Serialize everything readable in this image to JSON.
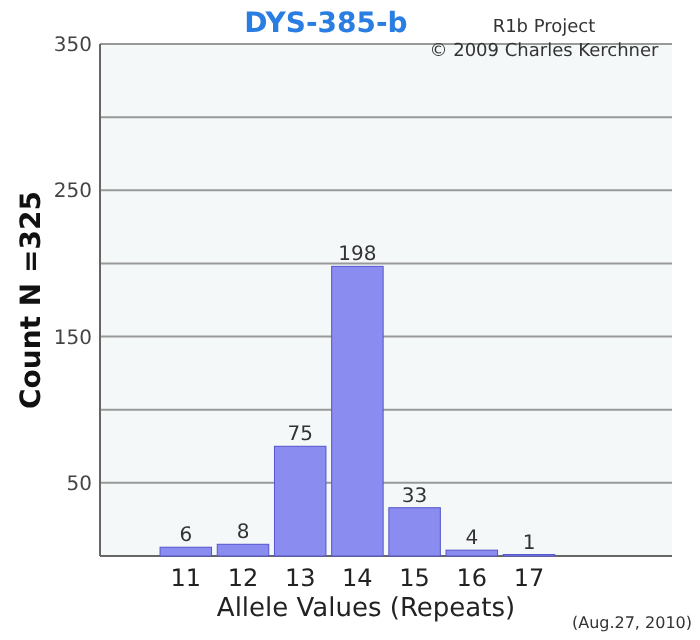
{
  "chart_data": {
    "type": "bar",
    "title": "DYS-385-b",
    "xlabel": "Allele Values (Repeats)",
    "ylabel": "Count N =325",
    "categories": [
      null,
      "11",
      "12",
      "13",
      "14",
      "15",
      "16",
      "17",
      null,
      null
    ],
    "values": [
      null,
      6,
      8,
      75,
      198,
      33,
      4,
      1,
      null,
      null
    ],
    "color": "#8a8cf0",
    "ylim": [
      0,
      350
    ],
    "yticks": [
      {
        "value": 0,
        "label": null
      },
      50,
      {
        "value": 100,
        "label": null
      },
      150,
      {
        "value": 200,
        "label": null
      },
      250,
      {
        "value": 300,
        "label": null
      },
      350
    ],
    "grid": "y",
    "data_labels": true,
    "annotations": [
      "R1b Project",
      "© 2009 Charles Kerchner",
      "(Aug.27, 2010)"
    ]
  }
}
